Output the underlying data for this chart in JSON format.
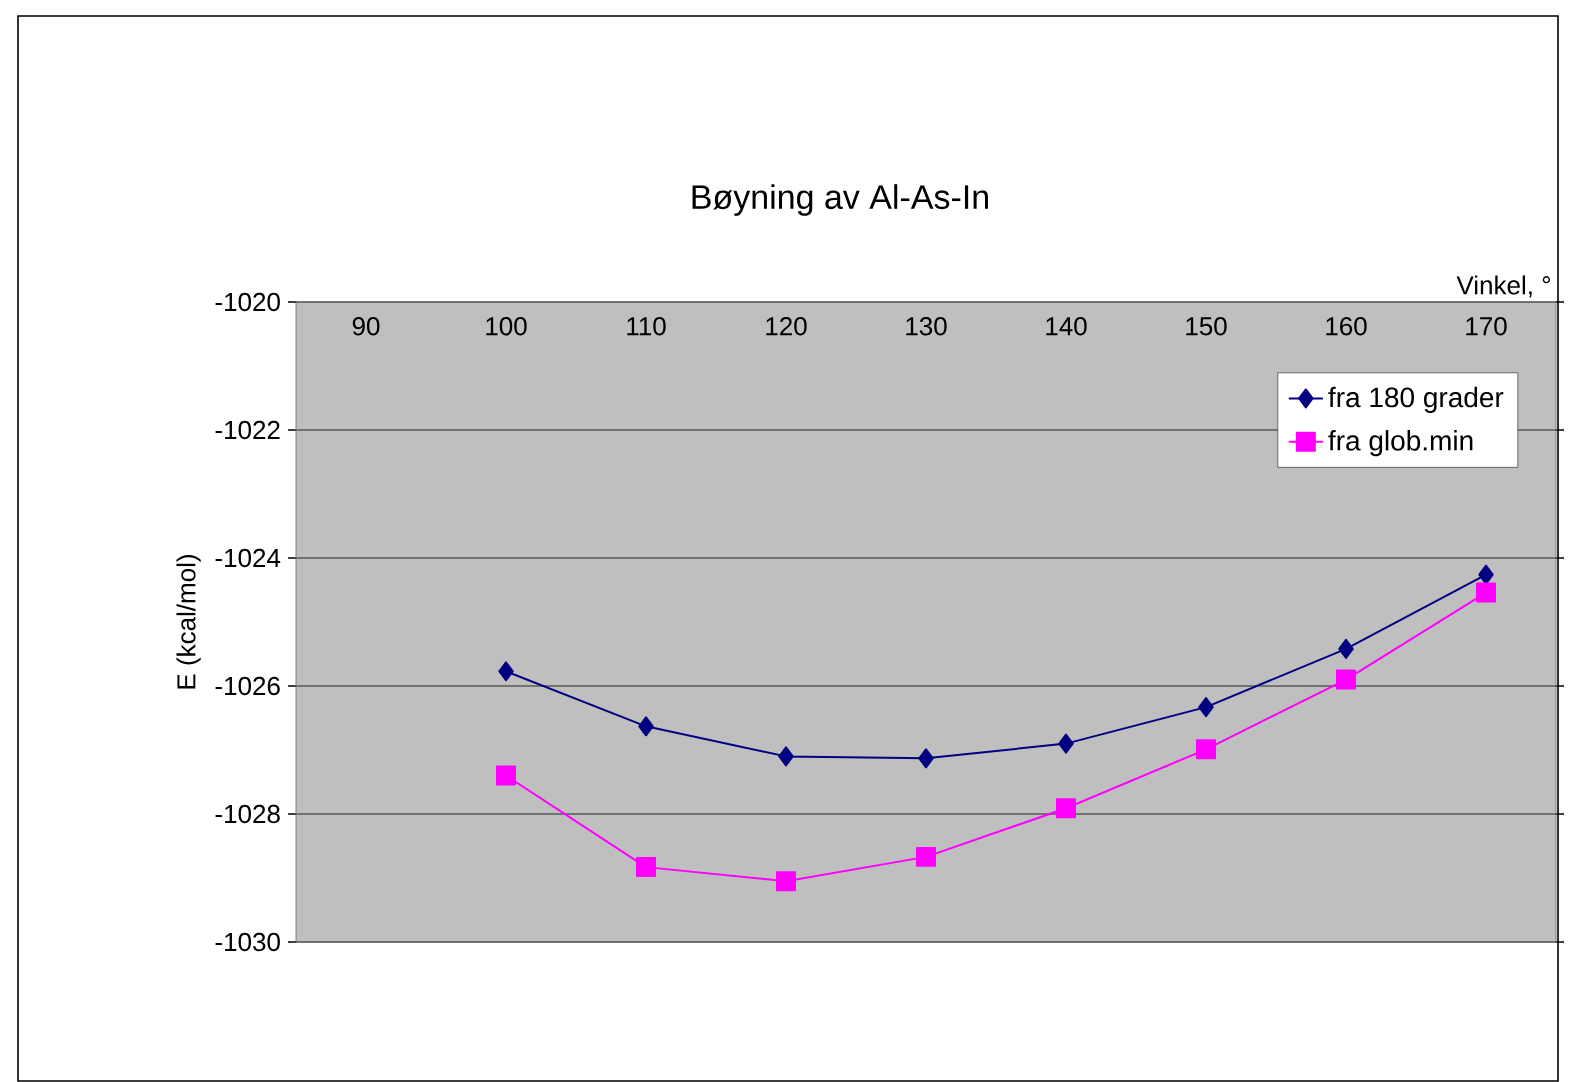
{
  "chart_data": {
    "type": "line",
    "title": "Bøyning av Al-As-In",
    "xlabel": "Vinkel, °",
    "ylabel": "E (kcal/mol)",
    "categories": [
      "90",
      "100",
      "110",
      "120",
      "130",
      "140",
      "150",
      "160",
      "170"
    ],
    "series": [
      {
        "name": "fra 180 grader",
        "color": "#000080",
        "marker": "diamond",
        "values": [
          null,
          -1025.77,
          -1026.63,
          -1027.1,
          -1027.13,
          -1026.9,
          -1026.33,
          -1025.42,
          -1024.26
        ]
      },
      {
        "name": "fra glob.min",
        "color": "#ff00ff",
        "marker": "square",
        "values": [
          null,
          -1027.4,
          -1028.83,
          -1029.05,
          -1028.67,
          -1027.91,
          -1026.99,
          -1025.9,
          -1024.54
        ]
      }
    ],
    "ylim": [
      -1030,
      -1020
    ],
    "yticks": [
      -1030,
      -1028,
      -1026,
      -1024,
      -1022,
      -1020
    ],
    "grid": "y",
    "legend": "top right",
    "line_style": "solid"
  }
}
